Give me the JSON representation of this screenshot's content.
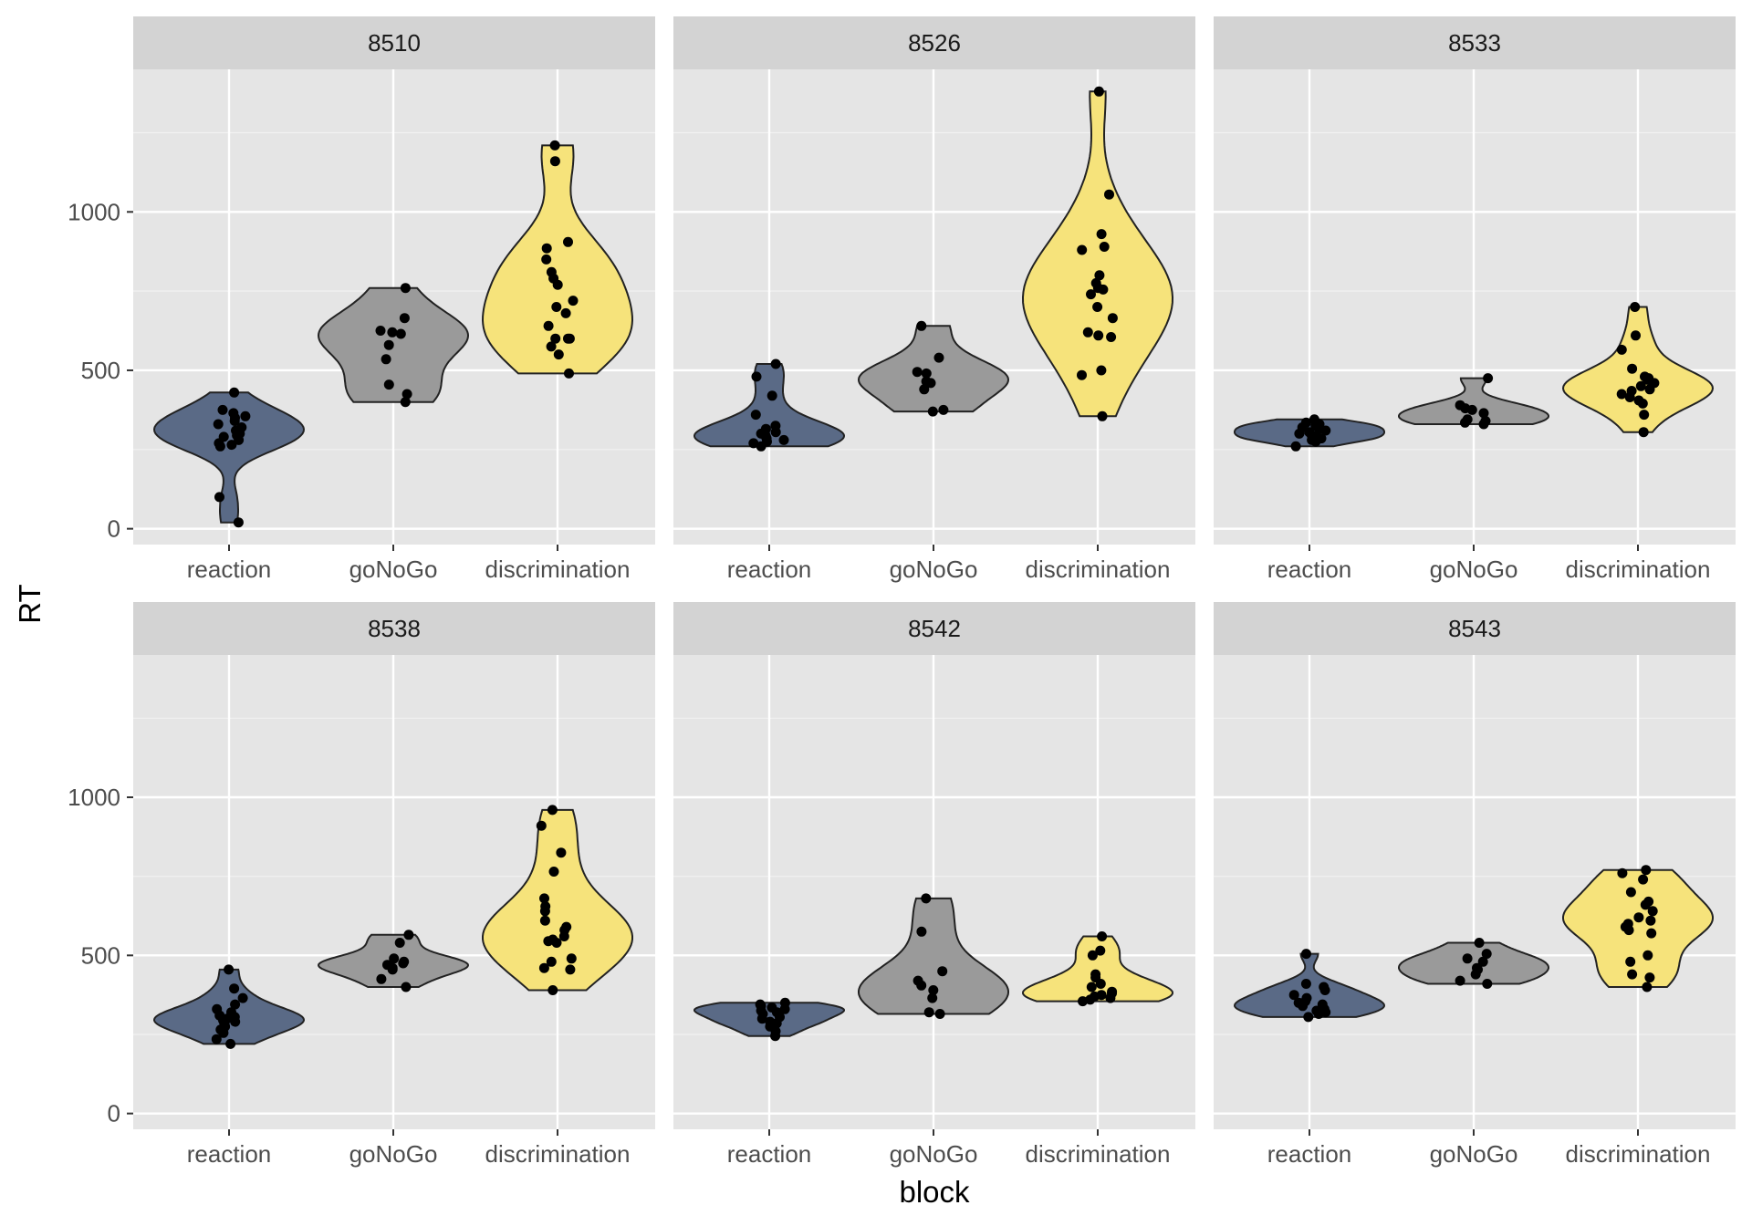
{
  "chart_data": {
    "type": "violin",
    "xlabel": "block",
    "ylabel": "RT",
    "categories": [
      "reaction",
      "goNoGo",
      "discrimination"
    ],
    "colors": {
      "reaction": "#5a6a86",
      "goNoGo": "#9a9a9a",
      "discrimination": "#f6e37b"
    },
    "ylim": [
      -50,
      1450
    ],
    "yticks": [
      0,
      500,
      1000
    ],
    "grid": true,
    "panel_background": "#e5e5e5",
    "strip_background": "#d3d3d3",
    "facets": [
      {
        "id": "8510",
        "groups": {
          "reaction": [
            430,
            375,
            365,
            355,
            350,
            340,
            330,
            320,
            310,
            300,
            295,
            290,
            280,
            270,
            265,
            260,
            100,
            20
          ],
          "goNoGo": [
            760,
            665,
            625,
            620,
            615,
            580,
            535,
            455,
            425,
            400
          ],
          "discrimination": [
            1210,
            1160,
            905,
            885,
            850,
            810,
            790,
            770,
            720,
            700,
            680,
            640,
            600,
            600,
            600,
            575,
            550,
            490
          ]
        }
      },
      {
        "id": "8526",
        "groups": {
          "reaction": [
            520,
            480,
            420,
            360,
            325,
            315,
            305,
            300,
            295,
            290,
            285,
            280,
            275,
            270,
            260
          ],
          "goNoGo": [
            640,
            540,
            495,
            490,
            465,
            460,
            440,
            375,
            370
          ],
          "discrimination": [
            1380,
            1055,
            930,
            890,
            880,
            800,
            775,
            760,
            755,
            740,
            700,
            665,
            620,
            610,
            605,
            500,
            485,
            355
          ]
        }
      },
      {
        "id": "8533",
        "groups": {
          "reaction": [
            345,
            335,
            330,
            325,
            320,
            315,
            310,
            305,
            300,
            295,
            290,
            285,
            280,
            275,
            260
          ],
          "goNoGo": [
            475,
            390,
            380,
            375,
            365,
            345,
            340,
            335,
            330
          ],
          "discrimination": [
            700,
            610,
            565,
            505,
            480,
            475,
            470,
            460,
            450,
            440,
            435,
            425,
            415,
            405,
            395,
            360,
            305
          ]
        }
      },
      {
        "id": "8538",
        "groups": {
          "reaction": [
            455,
            395,
            365,
            345,
            330,
            320,
            310,
            305,
            300,
            295,
            290,
            285,
            275,
            265,
            255,
            235,
            220
          ],
          "goNoGo": [
            565,
            540,
            490,
            480,
            475,
            470,
            460,
            455,
            425,
            400
          ],
          "discrimination": [
            960,
            910,
            825,
            765,
            680,
            655,
            640,
            610,
            590,
            580,
            560,
            550,
            545,
            540,
            490,
            480,
            460,
            455,
            390
          ]
        }
      },
      {
        "id": "8542",
        "groups": {
          "reaction": [
            350,
            345,
            340,
            335,
            330,
            325,
            320,
            315,
            305,
            300,
            290,
            285,
            275,
            260,
            245
          ],
          "goNoGo": [
            680,
            575,
            450,
            420,
            405,
            390,
            365,
            320,
            315
          ],
          "discrimination": [
            560,
            515,
            500,
            440,
            430,
            410,
            400,
            385,
            380,
            375,
            370,
            365,
            360,
            355
          ]
        }
      },
      {
        "id": "8543",
        "groups": {
          "reaction": [
            505,
            410,
            400,
            390,
            375,
            365,
            355,
            350,
            345,
            340,
            330,
            325,
            320,
            315,
            305
          ],
          "goNoGo": [
            540,
            505,
            490,
            480,
            460,
            455,
            440,
            420,
            410
          ],
          "discrimination": [
            770,
            760,
            740,
            700,
            670,
            660,
            640,
            620,
            610,
            600,
            590,
            580,
            570,
            500,
            480,
            440,
            430,
            400
          ]
        }
      }
    ]
  }
}
